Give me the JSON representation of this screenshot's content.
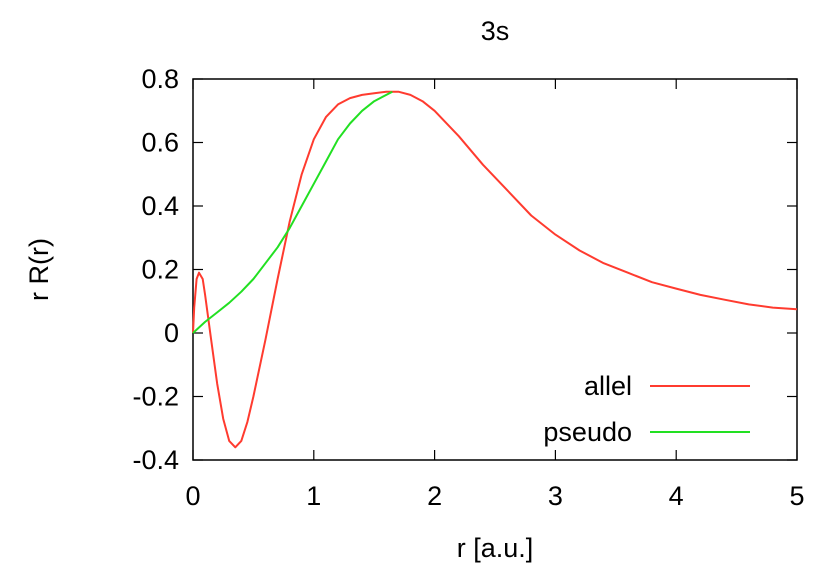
{
  "chart_data": {
    "type": "line",
    "title": "3s",
    "xlabel": "r [a.u.]",
    "ylabel": "r R(r)",
    "xlim": [
      0,
      5
    ],
    "ylim": [
      -0.4,
      0.8
    ],
    "xticks": [
      0,
      1,
      2,
      3,
      4,
      5
    ],
    "yticks": [
      -0.4,
      -0.2,
      0,
      0.2,
      0.4,
      0.6,
      0.8
    ],
    "xtick_labels": [
      "0",
      "1",
      "2",
      "3",
      "4",
      "5"
    ],
    "ytick_labels": [
      "-0.4",
      "-0.2",
      "0",
      "0.2",
      "0.4",
      "0.6",
      "0.8"
    ],
    "grid": false,
    "legend_position": "bottom-right",
    "series": [
      {
        "name": "allel",
        "color": "#ff3b2f",
        "x": [
          0.0,
          0.01,
          0.03,
          0.05,
          0.08,
          0.1,
          0.15,
          0.2,
          0.25,
          0.3,
          0.35,
          0.4,
          0.45,
          0.5,
          0.6,
          0.7,
          0.8,
          0.9,
          1.0,
          1.1,
          1.2,
          1.3,
          1.4,
          1.5,
          1.6,
          1.7,
          1.8,
          1.9,
          2.0,
          2.2,
          2.4,
          2.6,
          2.8,
          3.0,
          3.2,
          3.4,
          3.6,
          3.8,
          4.0,
          4.2,
          4.4,
          4.6,
          4.8,
          5.0
        ],
        "y": [
          0.0,
          0.08,
          0.17,
          0.19,
          0.17,
          0.12,
          -0.02,
          -0.16,
          -0.27,
          -0.34,
          -0.36,
          -0.34,
          -0.28,
          -0.2,
          -0.02,
          0.17,
          0.35,
          0.5,
          0.61,
          0.68,
          0.72,
          0.74,
          0.75,
          0.755,
          0.76,
          0.76,
          0.75,
          0.73,
          0.7,
          0.62,
          0.53,
          0.45,
          0.37,
          0.31,
          0.26,
          0.22,
          0.19,
          0.16,
          0.14,
          0.12,
          0.105,
          0.09,
          0.08,
          0.075
        ]
      },
      {
        "name": "pseudo",
        "color": "#22e022",
        "x": [
          0.0,
          0.1,
          0.2,
          0.3,
          0.4,
          0.5,
          0.6,
          0.7,
          0.8,
          0.9,
          1.0,
          1.1,
          1.2,
          1.3,
          1.4,
          1.5,
          1.6,
          1.65
        ],
        "y": [
          0.0,
          0.035,
          0.065,
          0.095,
          0.13,
          0.17,
          0.22,
          0.27,
          0.33,
          0.4,
          0.47,
          0.54,
          0.61,
          0.66,
          0.7,
          0.73,
          0.75,
          0.76
        ]
      }
    ]
  }
}
